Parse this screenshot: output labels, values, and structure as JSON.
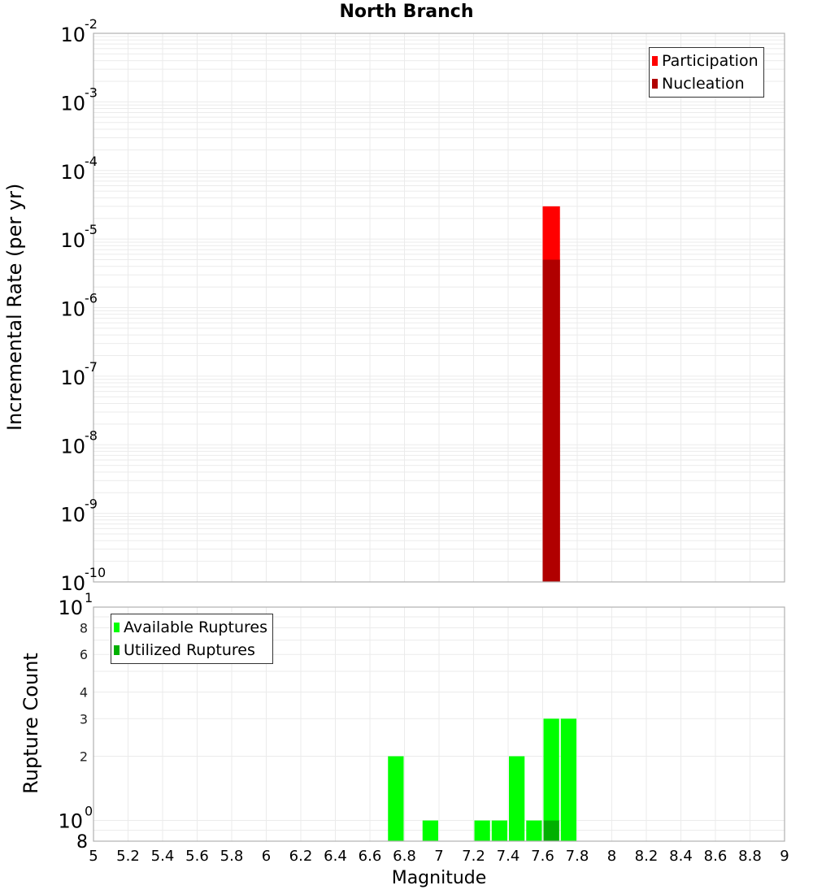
{
  "chart_data": [
    {
      "type": "bar",
      "title": "North Branch",
      "xlabel": "Magnitude",
      "ylabel": "Incremental Rate (per yr)",
      "yscale": "log",
      "ylim": [
        1e-10,
        0.01
      ],
      "xlim": [
        5,
        9
      ],
      "grid": true,
      "legend_position": "top-right",
      "ytick_labels": [
        "10^-2",
        "10^-3",
        "10^-4",
        "10^-5",
        "10^-6",
        "10^-7",
        "10^-8",
        "10^-9",
        "10^-10"
      ],
      "bin_width": 0.1,
      "series": [
        {
          "name": "Participation",
          "color": "#ff0000",
          "x": [
            7.65
          ],
          "values": [
            3e-05
          ]
        },
        {
          "name": "Nucleation",
          "color": "#b00000",
          "x": [
            7.65
          ],
          "values": [
            5e-06
          ]
        }
      ]
    },
    {
      "type": "bar",
      "title": "",
      "xlabel": "Magnitude",
      "ylabel": "Rupture Count",
      "yscale": "log",
      "ylim": [
        0.8,
        10
      ],
      "xlim": [
        5,
        9
      ],
      "grid": true,
      "legend_position": "top-left",
      "ytick_labels": [
        "10^1",
        "8",
        "6",
        "4",
        "3",
        "2",
        "10^0",
        "8"
      ],
      "xtick_labels": [
        "5",
        "5.2",
        "5.4",
        "5.6",
        "5.8",
        "6",
        "6.2",
        "6.4",
        "6.6",
        "6.8",
        "7",
        "7.2",
        "7.4",
        "7.6",
        "7.8",
        "8",
        "8.2",
        "8.4",
        "8.6",
        "8.8",
        "9"
      ],
      "bin_width": 0.1,
      "series": [
        {
          "name": "Available Ruptures",
          "color": "#00ff00",
          "x": [
            6.75,
            6.95,
            7.25,
            7.35,
            7.45,
            7.55,
            7.65,
            7.75
          ],
          "values": [
            2,
            1,
            1,
            1,
            2,
            1,
            3,
            3
          ]
        },
        {
          "name": "Utilized Ruptures",
          "color": "#00b000",
          "x": [
            7.65
          ],
          "values": [
            1
          ]
        }
      ]
    }
  ],
  "title": "North Branch",
  "top": {
    "ylabel": "Incremental Rate (per yr)",
    "legend": [
      {
        "label": "Participation",
        "color": "#ff0000"
      },
      {
        "label": "Nucleation",
        "color": "#b00000"
      }
    ]
  },
  "bottom": {
    "ylabel": "Rupture Count",
    "legend": [
      {
        "label": "Available Ruptures",
        "color": "#00ff00"
      },
      {
        "label": "Utilized Ruptures",
        "color": "#00b000"
      }
    ]
  },
  "xlabel": "Magnitude"
}
